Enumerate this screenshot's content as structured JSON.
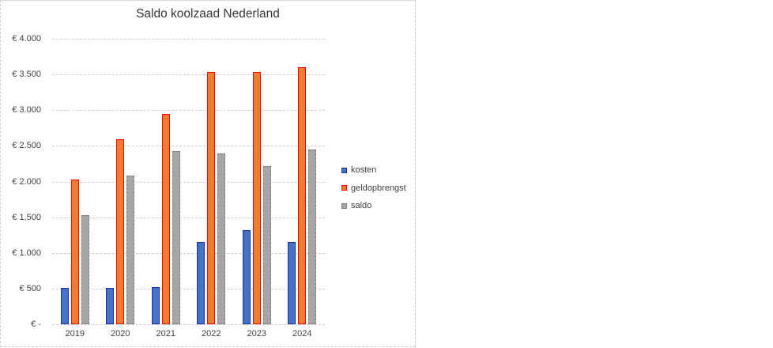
{
  "chart_data": {
    "type": "bar",
    "title": "Saldo koolzaad Nederland",
    "categories": [
      "2019",
      "2020",
      "2021",
      "2022",
      "2023",
      "2024"
    ],
    "series": [
      {
        "name": "kosten",
        "fill": "#4472C4",
        "border": "#1F2DA6",
        "border_style": "solid",
        "values": [
          505,
          505,
          520,
          1150,
          1320,
          1150
        ]
      },
      {
        "name": "geldopbrengst",
        "fill": "#ED7D31",
        "border": "#FF0000",
        "border_style": "solid",
        "values": [
          2030,
          2590,
          2950,
          3540,
          3540,
          3600
        ]
      },
      {
        "name": "saldo",
        "fill": "#A6A6A6",
        "border": "#7F7F7F",
        "border_style": "dashed",
        "values": [
          1525,
          2085,
          2430,
          2390,
          2220,
          2450
        ]
      }
    ],
    "ylim": [
      0,
      4000
    ],
    "y_tick_step": 500,
    "y_tick_labels": [
      "€ 4.000",
      "€ 3.500",
      "€ 3.000",
      "€ 2.500",
      "€ 2.000",
      "€ 1.500",
      "€ 1.000",
      "€ 500",
      "€ -"
    ],
    "grid": true,
    "gridline_color": "#cdcdcd",
    "legend_position": "right",
    "legend_entries": [
      "kosten",
      "geldopbrengst",
      "saldo"
    ],
    "axis_text_color": "#404040",
    "title_color": "#373737",
    "background": "#ffffff"
  }
}
